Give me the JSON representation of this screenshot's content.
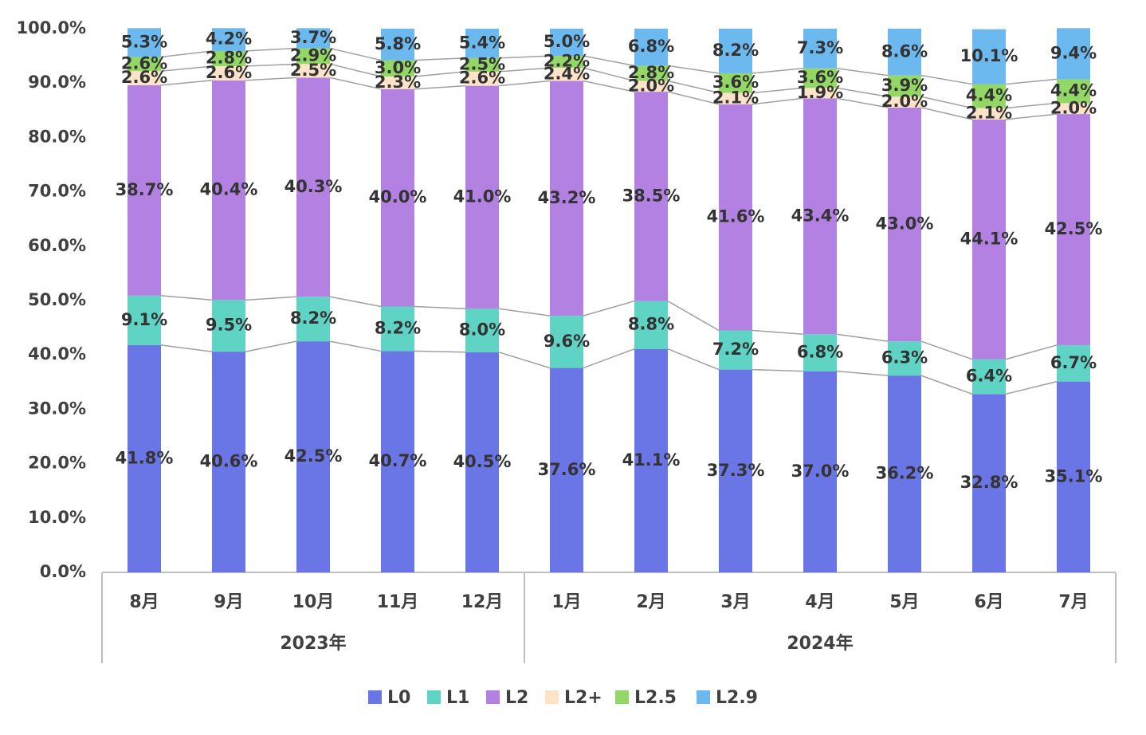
{
  "chart_data": {
    "type": "stacked_bar",
    "category_groups": [
      {
        "name": "2023年",
        "categories": [
          "8月",
          "9月",
          "10月",
          "11月",
          "12月"
        ]
      },
      {
        "name": "2024年",
        "categories": [
          "1月",
          "2月",
          "3月",
          "4月",
          "5月",
          "6月",
          "7月"
        ]
      }
    ],
    "series": [
      {
        "name": "L0",
        "color": "#6b76e6",
        "values": [
          41.8,
          40.6,
          42.5,
          40.7,
          40.5,
          37.6,
          41.1,
          37.3,
          37.0,
          36.2,
          32.8,
          35.1
        ],
        "value_labels": [
          "41.8%",
          "40.6%",
          "42.5%",
          "40.7%",
          "40.5%",
          "37.6%",
          "41.1%",
          "37.3%",
          "37.0%",
          "36.2%",
          "32.8%",
          "35.1%"
        ]
      },
      {
        "name": "L1",
        "color": "#5fd3c4",
        "values": [
          9.1,
          9.5,
          8.2,
          8.2,
          8.0,
          9.6,
          8.8,
          7.2,
          6.8,
          6.3,
          6.4,
          6.7
        ],
        "value_labels": [
          "9.1%",
          "9.5%",
          "8.2%",
          "8.2%",
          "8.0%",
          "9.6%",
          "8.8%",
          "7.2%",
          "6.8%",
          "6.3%",
          "6.4%",
          "6.7%"
        ]
      },
      {
        "name": "L2",
        "color": "#b281e2",
        "values": [
          38.7,
          40.4,
          40.3,
          40.0,
          41.0,
          43.2,
          38.5,
          41.6,
          43.4,
          43.0,
          44.1,
          42.5
        ],
        "value_labels": [
          "38.7%",
          "40.4%",
          "40.3%",
          "40.0%",
          "41.0%",
          "43.2%",
          "38.5%",
          "41.6%",
          "43.4%",
          "43.0%",
          "44.1%",
          "42.5%"
        ]
      },
      {
        "name": "L2+",
        "color": "#fde4c8",
        "values": [
          2.6,
          2.6,
          2.5,
          2.3,
          2.6,
          2.4,
          2.0,
          2.1,
          1.9,
          2.0,
          2.1,
          2.0
        ],
        "value_labels": [
          "2.6%",
          "2.6%",
          "2.5%",
          "2.3%",
          "2.6%",
          "2.4%",
          "2.0%",
          "2.1%",
          "1.9%",
          "2.0%",
          "2.1%",
          "2.0%"
        ]
      },
      {
        "name": "L2.5",
        "color": "#93d766",
        "values": [
          2.6,
          2.8,
          2.9,
          3.0,
          2.5,
          2.2,
          2.8,
          3.6,
          3.6,
          3.9,
          4.4,
          4.4
        ],
        "value_labels": [
          "2.6%",
          "2.8%",
          "2.9%",
          "3.0%",
          "2.5%",
          "2.2%",
          "2.8%",
          "3.6%",
          "3.6%",
          "3.9%",
          "4.4%",
          "4.4%"
        ]
      },
      {
        "name": "L2.9",
        "color": "#6cb9f0",
        "values": [
          5.3,
          4.2,
          3.7,
          5.8,
          5.4,
          5.0,
          6.8,
          8.2,
          7.3,
          8.6,
          10.1,
          9.4
        ],
        "value_labels": [
          "5.3%",
          "4.2%",
          "3.7%",
          "5.8%",
          "5.4%",
          "5.0%",
          "6.8%",
          "8.2%",
          "7.3%",
          "8.6%",
          "10.1%",
          "9.4%"
        ]
      }
    ],
    "ylim": [
      0,
      100
    ],
    "yticks": [
      {
        "value": 0,
        "label": "0.0%"
      },
      {
        "value": 10,
        "label": "10.0%"
      },
      {
        "value": 20,
        "label": "20.0%"
      },
      {
        "value": 30,
        "label": "30.0%"
      },
      {
        "value": 40,
        "label": "40.0%"
      },
      {
        "value": 50,
        "label": "50.0%"
      },
      {
        "value": 60,
        "label": "60.0%"
      },
      {
        "value": 70,
        "label": "70.0%"
      },
      {
        "value": 80,
        "label": "80.0%"
      },
      {
        "value": 90,
        "label": "90.0%"
      },
      {
        "value": 100,
        "label": "100.0%"
      }
    ],
    "legend": "bottom"
  }
}
